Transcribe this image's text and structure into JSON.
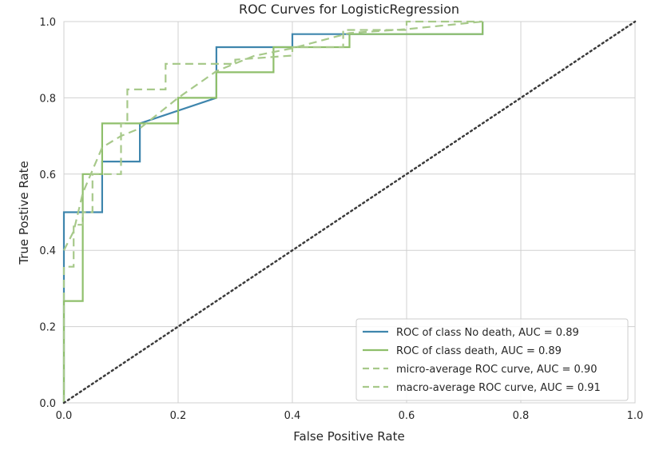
{
  "chart_data": {
    "type": "line",
    "title": "ROC Curves for LogisticRegression",
    "xlabel": "False Positive Rate",
    "ylabel": "True Postive Rate",
    "xlim": [
      0.0,
      1.0
    ],
    "ylim": [
      0.0,
      1.0
    ],
    "x_ticks": [
      0.0,
      0.2,
      0.4,
      0.6,
      0.8,
      1.0
    ],
    "y_ticks": [
      0.0,
      0.2,
      0.4,
      0.6,
      0.8,
      1.0
    ],
    "x_tick_labels": [
      "0.0",
      "0.2",
      "0.4",
      "0.6",
      "0.8",
      "1.0"
    ],
    "y_tick_labels": [
      "0.0",
      "0.2",
      "0.4",
      "0.6",
      "0.8",
      "1.0"
    ],
    "grid": true,
    "legend_position": "lower-right",
    "background": "#eaeaf2",
    "series": [
      {
        "name": "ROC of class No death, AUC = 0.89",
        "color": "#3f86ad",
        "style": "solid",
        "x": [
          0.0,
          0.0,
          0.0,
          0.067,
          0.067,
          0.133,
          0.133,
          0.267,
          0.267,
          0.4,
          0.4,
          0.733,
          0.733
        ],
        "y": [
          0.0,
          0.267,
          0.5,
          0.5,
          0.633,
          0.633,
          0.733,
          0.8,
          0.933,
          0.933,
          0.967,
          0.967,
          1.0
        ]
      },
      {
        "name": "ROC of class death, AUC = 0.89",
        "color": "#8fbf6b",
        "style": "solid",
        "x": [
          0.0,
          0.0,
          0.033,
          0.033,
          0.067,
          0.067,
          0.2,
          0.2,
          0.267,
          0.267,
          0.367,
          0.367,
          0.4,
          0.4,
          0.5,
          0.5,
          0.733,
          0.733
        ],
        "y": [
          0.0,
          0.267,
          0.267,
          0.6,
          0.6,
          0.733,
          0.733,
          0.8,
          0.8,
          0.867,
          0.867,
          0.933,
          0.933,
          0.933,
          0.933,
          0.967,
          0.967,
          1.0
        ]
      },
      {
        "name": "micro-average ROC curve, AUC = 0.90",
        "color": "#a7c98a",
        "style": "dashed",
        "x": [
          0.0,
          0.0,
          0.017,
          0.017,
          0.033,
          0.033,
          0.05,
          0.05,
          0.067,
          0.1,
          0.1,
          0.111,
          0.111,
          0.178,
          0.178,
          0.267,
          0.3,
          0.3,
          0.4,
          0.4,
          0.489,
          0.489,
          0.6,
          0.6,
          0.733
        ],
        "y": [
          0.0,
          0.357,
          0.357,
          0.467,
          0.467,
          0.5,
          0.5,
          0.6,
          0.6,
          0.6,
          0.733,
          0.733,
          0.822,
          0.822,
          0.889,
          0.889,
          0.889,
          0.9,
          0.911,
          0.933,
          0.933,
          0.978,
          0.978,
          1.0,
          1.0
        ]
      },
      {
        "name": "macro-average ROC curve, AUC = 0.91",
        "color": "#a7c98a",
        "style": "dashed",
        "x": [
          0.0,
          0.017,
          0.033,
          0.067,
          0.1,
          0.133,
          0.2,
          0.267,
          0.333,
          0.4,
          0.5,
          0.6,
          0.733
        ],
        "y": [
          0.4,
          0.45,
          0.55,
          0.67,
          0.7,
          0.72,
          0.8,
          0.87,
          0.91,
          0.93,
          0.97,
          0.98,
          1.0
        ]
      },
      {
        "name": "",
        "color": "#3b3b3b",
        "style": "dotted",
        "x": [
          0.0,
          1.0
        ],
        "y": [
          0.0,
          1.0
        ]
      }
    ]
  }
}
